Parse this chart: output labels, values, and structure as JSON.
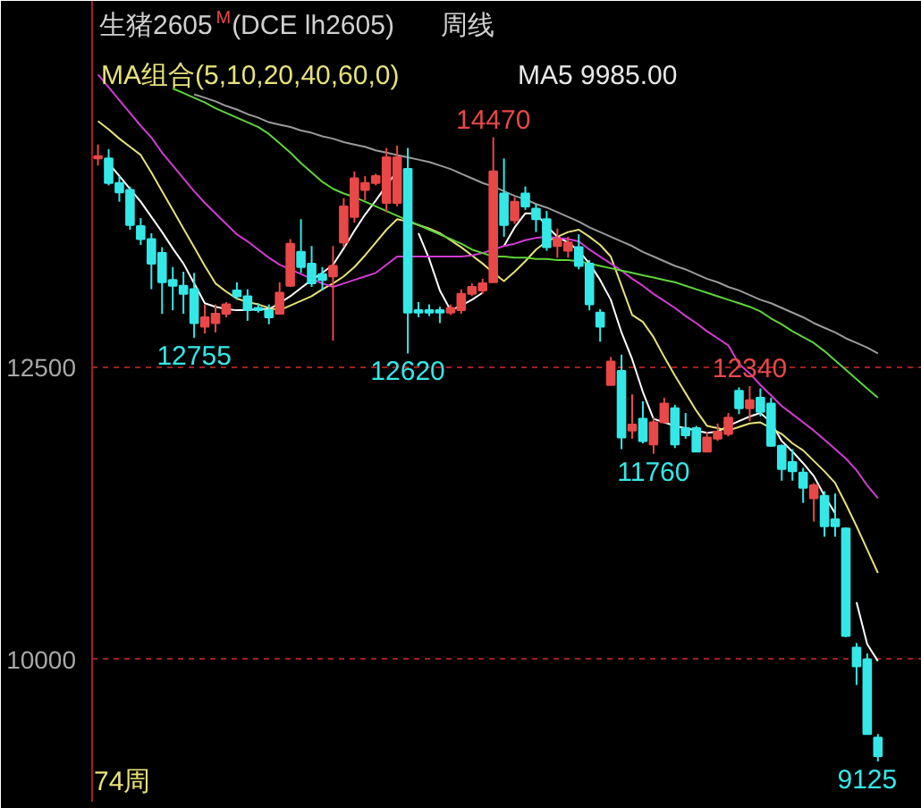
{
  "chart_data": {
    "type": "candlestick",
    "title": "生猪2605$^{M}$(DCE lh2605)",
    "subtitle": "MA组合(5,10,20,40,60,0)",
    "categories": [
      null,
      null,
      null,
      null,
      null,
      null,
      null,
      null,
      null,
      null,
      null,
      null,
      null,
      null,
      null,
      null,
      null,
      null,
      null,
      null,
      null,
      null,
      null,
      null,
      null,
      null,
      null,
      null,
      null,
      null,
      null,
      null,
      null,
      null,
      null,
      null,
      null,
      null,
      null,
      null,
      null,
      null,
      null,
      null,
      null,
      null,
      null,
      null,
      null,
      null,
      null,
      null,
      null,
      null,
      null,
      null,
      null,
      null,
      null,
      null,
      null,
      null,
      null,
      null,
      null,
      null,
      null,
      null,
      null,
      null,
      null,
      null,
      null,
      null
    ],
    "ohlc": [
      [
        14290,
        14410,
        14230,
        14310
      ],
      [
        14290,
        14370,
        14060,
        14080
      ],
      [
        14080,
        14140,
        13920,
        14000
      ],
      [
        14020,
        14050,
        13680,
        13720
      ],
      [
        13710,
        13780,
        13550,
        13600
      ],
      [
        13600,
        13650,
        13170,
        13390
      ],
      [
        13480,
        13530,
        12960,
        13230
      ],
      [
        13250,
        13360,
        12990,
        13200
      ],
      [
        13200,
        13320,
        12960,
        13130
      ],
      [
        13170,
        13310,
        12755,
        12880
      ],
      [
        12850,
        13040,
        12790,
        12930
      ],
      [
        12880,
        13040,
        12800,
        12960
      ],
      [
        12960,
        13060,
        12930,
        13040
      ],
      [
        13160,
        13230,
        13080,
        13110
      ],
      [
        13110,
        13170,
        12900,
        12990
      ],
      [
        13010,
        13050,
        12970,
        12990
      ],
      [
        12990,
        13040,
        12870,
        12930
      ],
      [
        12960,
        13230,
        12960,
        13140
      ],
      [
        13200,
        13600,
        13190,
        13560
      ],
      [
        13490,
        13770,
        13310,
        13360
      ],
      [
        13390,
        13540,
        13190,
        13220
      ],
      [
        13300,
        13360,
        13160,
        13250
      ],
      [
        13280,
        13540,
        12730,
        13370
      ],
      [
        13570,
        13950,
        13530,
        13880
      ],
      [
        13790,
        14180,
        13740,
        14120
      ],
      [
        14020,
        14140,
        13930,
        14080
      ],
      [
        14080,
        14160,
        14060,
        14140
      ],
      [
        13910,
        14380,
        13830,
        14300
      ],
      [
        13910,
        14400,
        13880,
        14300
      ],
      [
        14200,
        14380,
        12620,
        12970
      ],
      [
        12990,
        13060,
        12930,
        12970
      ],
      [
        12990,
        13040,
        12940,
        12970
      ],
      [
        12990,
        13020,
        12880,
        12970
      ],
      [
        12970,
        13040,
        12950,
        13010
      ],
      [
        12990,
        13170,
        12960,
        13130
      ],
      [
        13130,
        13220,
        13110,
        13190
      ],
      [
        13160,
        13260,
        13130,
        13220
      ],
      [
        13230,
        14470,
        13230,
        14180
      ],
      [
        13990,
        14290,
        13620,
        13720
      ],
      [
        13760,
        13960,
        13730,
        13920
      ],
      [
        13990,
        14050,
        13850,
        13880
      ],
      [
        13860,
        13900,
        13660,
        13770
      ],
      [
        13770,
        13840,
        13500,
        13530
      ],
      [
        13540,
        13690,
        13440,
        13600
      ],
      [
        13500,
        13620,
        13440,
        13570
      ],
      [
        13530,
        13640,
        13340,
        13370
      ],
      [
        13390,
        13420,
        12990,
        13040
      ],
      [
        12970,
        13000,
        12720,
        12850
      ],
      [
        12350,
        12590,
        12350,
        12550
      ],
      [
        12470,
        12610,
        11800,
        11900
      ],
      [
        11960,
        12270,
        11890,
        12010
      ],
      [
        12060,
        12210,
        11850,
        11870
      ],
      [
        11840,
        12070,
        11760,
        12030
      ],
      [
        12030,
        12240,
        12030,
        12190
      ],
      [
        12150,
        12180,
        11810,
        11840
      ],
      [
        11980,
        12110,
        11890,
        11920
      ],
      [
        11980,
        12000,
        11780,
        11780
      ],
      [
        11780,
        11950,
        11780,
        11900
      ],
      [
        11890,
        12020,
        11870,
        11950
      ],
      [
        11930,
        12110,
        11910,
        12070
      ],
      [
        12300,
        12330,
        12100,
        12150
      ],
      [
        12150,
        12340,
        12040,
        12220
      ],
      [
        12240,
        12320,
        12080,
        12120
      ],
      [
        12190,
        12240,
        11820,
        11830
      ],
      [
        11830,
        11840,
        11530,
        11630
      ],
      [
        11690,
        11800,
        11530,
        11610
      ],
      [
        11600,
        11640,
        11340,
        11470
      ],
      [
        11380,
        11510,
        11180,
        11490
      ],
      [
        11400,
        11440,
        11050,
        11140
      ],
      [
        11200,
        11420,
        11050,
        11140
      ],
      [
        11120,
        11130,
        10190,
        10200
      ],
      [
        10100,
        10140,
        9780,
        9940
      ],
      [
        10000,
        10050,
        9360,
        9360
      ],
      [
        9330,
        9360,
        9125,
        9170
      ]
    ],
    "colors": [
      "#e84848",
      "#35e8e8",
      "#35e8e8",
      "#35e8e8",
      "#35e8e8",
      "#35e8e8",
      "#35e8e8",
      "#35e8e8",
      "#35e8e8",
      "#35e8e8",
      "#e84848",
      "#e84848",
      "#e84848",
      "#35e8e8",
      "#35e8e8",
      "#35e8e8",
      "#35e8e8",
      "#e84848",
      "#e84848",
      "#35e8e8",
      "#35e8e8",
      "#35e8e8",
      "#e84848",
      "#e84848",
      "#e84848",
      "#e84848",
      "#e84848",
      "#e84848",
      "#e84848",
      "#35e8e8",
      "#35e8e8",
      "#35e8e8",
      "#35e8e8",
      "#e84848",
      "#e84848",
      "#e84848",
      "#e84848",
      "#e84848",
      "#35e8e8",
      "#e84848",
      "#35e8e8",
      "#35e8e8",
      "#35e8e8",
      "#e84848",
      "#e84848",
      "#35e8e8",
      "#35e8e8",
      "#35e8e8",
      "#e84848",
      "#35e8e8",
      "#e84848",
      "#35e8e8",
      "#e84848",
      "#e84848",
      "#35e8e8",
      "#35e8e8",
      "#35e8e8",
      "#e84848",
      "#e84848",
      "#e84848",
      "#35e8e8",
      "#e84848",
      "#35e8e8",
      "#35e8e8",
      "#35e8e8",
      "#35e8e8",
      "#35e8e8",
      "#e84848",
      "#35e8e8",
      "#35e8e8",
      "#35e8e8",
      "#35e8e8",
      "#35e8e8",
      "#35e8e8"
    ],
    "series": [
      {
        "type": "line",
        "color": "#ffffff",
        "values": [
          null,
          14250,
          14140,
          14030,
          13920,
          13790,
          13660,
          13520,
          13390,
          13220,
          13050,
          13020,
          13000,
          12990,
          12990,
          13000,
          13000,
          13050,
          13110,
          13180,
          13250,
          13310,
          13380,
          13520,
          13670,
          13810,
          13930,
          14060,
          14180,
          null,
          13650,
          13430,
          13160,
          12990,
          13030,
          13080,
          13140,
          null,
          13540,
          13700,
          13820,
          13820,
          13710,
          13620,
          13570,
          13500,
          13390,
          13250,
          13080,
          12800,
          12570,
          12290,
          12060,
          12030,
          12000,
          11980,
          11960,
          11940,
          11950,
          12000,
          12040,
          12080,
          12110,
          12030,
          11870,
          11780,
          11680,
          11570,
          11400,
          11250,
          null,
          10490,
          10130,
          9985
        ]
      },
      {
        "type": "line",
        "color": "#e6e27a",
        "values": [
          14610,
          14540,
          14460,
          14390,
          14320,
          14170,
          14010,
          13850,
          13690,
          13530,
          13370,
          13220,
          13150,
          13090,
          13060,
          13040,
          13010,
          12990,
          13030,
          13070,
          13110,
          13170,
          13220,
          13280,
          13360,
          13460,
          13570,
          13680,
          13770,
          13750,
          13720,
          13690,
          13650,
          13590,
          13530,
          13460,
          13390,
          13310,
          13240,
          13320,
          13410,
          13510,
          13580,
          13620,
          13660,
          13680,
          13620,
          13550,
          13450,
          13200,
          12950,
          12890,
          12760,
          12590,
          12430,
          12280,
          12130,
          12000,
          11980,
          11960,
          11990,
          12020,
          12030,
          11980,
          11930,
          11850,
          11790,
          11700,
          11610,
          11510,
          11330,
          11140,
          10940,
          10740
        ]
      },
      {
        "type": "line",
        "color": "#d23cd2",
        "values": [
          15010,
          14900,
          14790,
          14680,
          14570,
          14470,
          14340,
          14230,
          14120,
          14010,
          13910,
          13820,
          13730,
          13640,
          13580,
          13510,
          13440,
          13380,
          13340,
          13300,
          13260,
          13220,
          13190,
          13220,
          13250,
          13280,
          13310,
          13380,
          13450,
          13450,
          13450,
          13450,
          13450,
          13450,
          13450,
          13460,
          13480,
          13510,
          13540,
          13560,
          13590,
          13610,
          13620,
          13610,
          13600,
          13580,
          13510,
          13450,
          13390,
          13330,
          13260,
          13200,
          13130,
          13070,
          13010,
          12940,
          12880,
          12810,
          12750,
          12690,
          12530,
          12450,
          12350,
          12260,
          12170,
          12100,
          12030,
          11960,
          11880,
          11800,
          11720,
          11620,
          11490,
          11380
        ]
      },
      {
        "type": "line",
        "color": "#5ed43a",
        "values": [
          null,
          null,
          null,
          null,
          null,
          null,
          null,
          14890,
          14850,
          14810,
          14770,
          14720,
          14680,
          14640,
          14600,
          14560,
          14500,
          14420,
          14340,
          14250,
          14170,
          14090,
          14030,
          13990,
          13960,
          13920,
          13880,
          13840,
          13800,
          13760,
          13720,
          13680,
          13640,
          13600,
          13560,
          13510,
          13480,
          13450,
          13450,
          13440,
          13440,
          13430,
          13430,
          13420,
          13420,
          13410,
          13390,
          13370,
          13350,
          13330,
          13310,
          13290,
          13270,
          13250,
          13230,
          13200,
          13170,
          13140,
          13110,
          13080,
          13050,
          13020,
          12980,
          12920,
          12870,
          12810,
          12760,
          12710,
          12640,
          12560,
          12480,
          12400,
          12320,
          12240
        ]
      },
      {
        "type": "line",
        "color": "#9a9a9a",
        "values": [
          null,
          null,
          null,
          null,
          null,
          null,
          null,
          null,
          null,
          14840,
          14810,
          14780,
          14740,
          14710,
          14670,
          14640,
          14600,
          14580,
          14560,
          14530,
          14510,
          14480,
          14460,
          14430,
          14410,
          14390,
          14360,
          14340,
          14320,
          14300,
          14280,
          14260,
          14230,
          14200,
          14160,
          14120,
          14080,
          14050,
          14010,
          13970,
          13940,
          13900,
          13870,
          13830,
          13790,
          13750,
          13700,
          13660,
          13620,
          13580,
          13540,
          13490,
          13450,
          13410,
          13370,
          13340,
          13300,
          13260,
          13230,
          13190,
          13160,
          13120,
          13080,
          13050,
          13010,
          12970,
          12930,
          12880,
          12840,
          12800,
          12750,
          12710,
          12670,
          12620
        ]
      }
    ],
    "ylim": [
      8780,
      15640
    ],
    "yticks": [
      10000,
      12500
    ],
    "tick_labels": "y",
    "grid": "y",
    "annotations": [
      {
        "text": "14470",
        "y": 14470
      },
      {
        "text": "12755",
        "y": 12755
      },
      {
        "text": "12620",
        "y": 12620
      },
      {
        "text": "11760",
        "y": 11760
      },
      {
        "text": "12340",
        "y": 12340
      },
      {
        "text": "9125",
        "y": 9125
      },
      "周线",
      "MA5 9985.00",
      "74周"
    ]
  }
}
